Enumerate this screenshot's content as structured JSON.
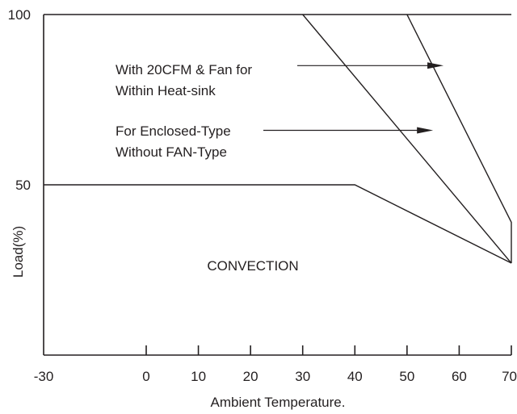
{
  "chart_data": {
    "type": "line",
    "title": "",
    "xlabel": "Ambient Temperature.",
    "ylabel": "Load(%)",
    "x_ticks": [
      -30,
      0,
      10,
      20,
      30,
      40,
      50,
      60,
      70
    ],
    "y_ticks": [
      50,
      100
    ],
    "xlim": [
      -30,
      70
    ],
    "ylim": [
      0,
      100
    ],
    "grid": false,
    "series": [
      {
        "x": [
          -30,
          40,
          70
        ],
        "y": [
          50,
          50,
          27
        ]
      },
      {
        "x": [
          30,
          70
        ],
        "y": [
          100,
          27
        ]
      },
      {
        "x": [
          50,
          70,
          70
        ],
        "y": [
          100,
          39,
          27
        ]
      }
    ],
    "annotations": [
      {
        "lines": [
          "With 20CFM & Fan for",
          "Within Heat-sink"
        ],
        "target": {
          "x": 57,
          "y": 85
        }
      },
      {
        "lines": [
          "For Enclosed-Type",
          "Without FAN-Type"
        ],
        "target": {
          "x": 55,
          "y": 66
        }
      },
      {
        "lines": [
          "CONVECTION"
        ]
      }
    ]
  }
}
